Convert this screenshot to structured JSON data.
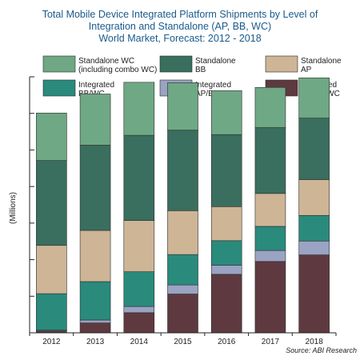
{
  "chart_data": {
    "type": "bar",
    "stacked": true,
    "title": [
      "Total Mobile Device Integrated Platform Shipments by Level of",
      "Integration and Standalone (AP, BB, WC)",
      "World Market, Forecast: 2012 - 2018"
    ],
    "ylabel": "(Millions)",
    "xlabel": "",
    "source": "Source: ABI Research",
    "categories": [
      "2012",
      "2013",
      "2014",
      "2015",
      "2016",
      "2017",
      "2018"
    ],
    "ylim": [
      0,
      7
    ],
    "grid": false,
    "legend_position": "top",
    "series": [
      {
        "name": "Integrated AP/BB/WC",
        "legend_lines": [
          "Integrated",
          "AP/BB/WC"
        ],
        "color": "#5e3a40",
        "values": [
          0.05,
          0.27,
          0.55,
          1.06,
          1.6,
          1.95,
          2.13
        ]
      },
      {
        "name": "Integrated AP/BB",
        "legend_lines": [
          "Integrated",
          "AP/BB"
        ],
        "color": "#9aa3c2",
        "values": [
          0.02,
          0.08,
          0.17,
          0.25,
          0.25,
          0.3,
          0.38
        ]
      },
      {
        "name": "Integrated BB/WC",
        "legend_lines": [
          "Integrated",
          "BB/WC"
        ],
        "color": "#2a8a7c",
        "values": [
          1.0,
          1.05,
          0.95,
          0.83,
          0.67,
          0.66,
          0.7
        ]
      },
      {
        "name": "Standalone AP",
        "legend_lines": [
          "Standalone",
          "AP"
        ],
        "color": "#cdb596",
        "values": [
          1.32,
          1.4,
          1.4,
          1.2,
          0.93,
          0.9,
          0.98
        ]
      },
      {
        "name": "Standalone BB",
        "legend_lines": [
          "Standalone",
          "BB"
        ],
        "color": "#3a6e5e",
        "values": [
          2.32,
          2.33,
          2.33,
          2.2,
          1.97,
          1.8,
          1.68
        ]
      },
      {
        "name": "Standalone WC (including combo WC)",
        "legend_lines": [
          "Standalone WC",
          "(including combo WC)"
        ],
        "color": "#6fa884",
        "values": [
          1.3,
          1.4,
          1.45,
          1.3,
          1.2,
          1.1,
          1.1
        ]
      }
    ],
    "legend_order": [
      5,
      4,
      3,
      2,
      1,
      0
    ]
  }
}
